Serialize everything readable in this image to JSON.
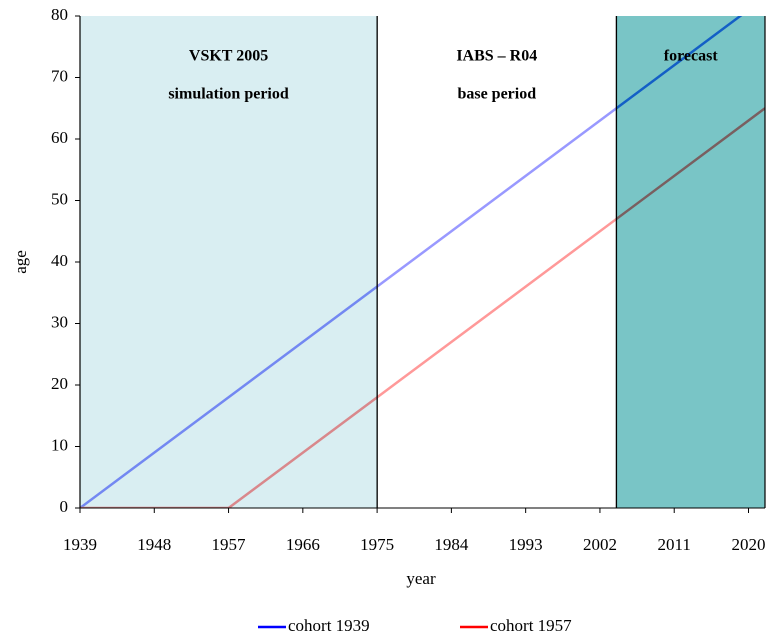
{
  "chart_data": {
    "type": "line",
    "x_label": "year",
    "y_label": "age",
    "xlim": [
      1939,
      2022
    ],
    "xticks": [
      1939,
      1948,
      1957,
      1966,
      1975,
      1984,
      1993,
      2002,
      2011,
      2020
    ],
    "ylim": [
      0,
      80
    ],
    "yticks": [
      0,
      10,
      20,
      30,
      40,
      50,
      60,
      70,
      80
    ],
    "series": [
      {
        "name": "cohort 1939",
        "color": "#0000ff",
        "x": [
          1939,
          2020
        ],
        "values": [
          0,
          81
        ]
      },
      {
        "name": "cohort 1957",
        "color": "#ff0000",
        "x": [
          1939,
          1957,
          2022
        ],
        "values": [
          0,
          0,
          65
        ]
      }
    ],
    "regions": [
      {
        "start": 1939,
        "end": 1975,
        "color": "#bfe3ea",
        "labels": [
          "VSKT 2005",
          "simulation period"
        ]
      },
      {
        "start": 1975,
        "end": 2004,
        "color": "#ffffff",
        "labels": [
          "IABS – R04",
          "base period"
        ]
      },
      {
        "start": 2004,
        "end": 2022,
        "color": "#1f9ea0",
        "labels": [
          "forecast"
        ]
      }
    ],
    "legend": "bottom"
  }
}
